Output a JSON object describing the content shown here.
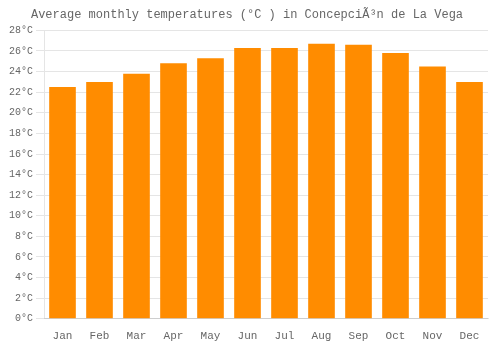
{
  "chart_data": {
    "type": "bar",
    "title": "Average monthly temperatures (°C ) in ConcepciÃ³n de La Vega",
    "categories": [
      "Jan",
      "Feb",
      "Mar",
      "Apr",
      "May",
      "Jun",
      "Jul",
      "Aug",
      "Sep",
      "Oct",
      "Nov",
      "Dec"
    ],
    "values": [
      22.5,
      23.0,
      23.8,
      24.8,
      25.3,
      26.3,
      26.3,
      26.7,
      26.6,
      25.8,
      24.5,
      23.0
    ],
    "color": "#FF8C00",
    "ylim": [
      0,
      28
    ],
    "yticks": [
      {
        "value": 0,
        "label": "0°C"
      },
      {
        "value": 2,
        "label": "2°C"
      },
      {
        "value": 4,
        "label": "4°C"
      },
      {
        "value": 6,
        "label": "6°C"
      },
      {
        "value": 8,
        "label": "8°C"
      },
      {
        "value": 10,
        "label": "10°C"
      },
      {
        "value": 12,
        "label": "12°C"
      },
      {
        "value": 14,
        "label": "14°C"
      },
      {
        "value": 16,
        "label": "16°C"
      },
      {
        "value": 18,
        "label": "18°C"
      },
      {
        "value": 20,
        "label": "20°C"
      },
      {
        "value": 22,
        "label": "22°C"
      },
      {
        "value": 24,
        "label": "24°C"
      },
      {
        "value": 26,
        "label": "26°C"
      },
      {
        "value": 28,
        "label": "28°C"
      }
    ],
    "grid": true
  }
}
